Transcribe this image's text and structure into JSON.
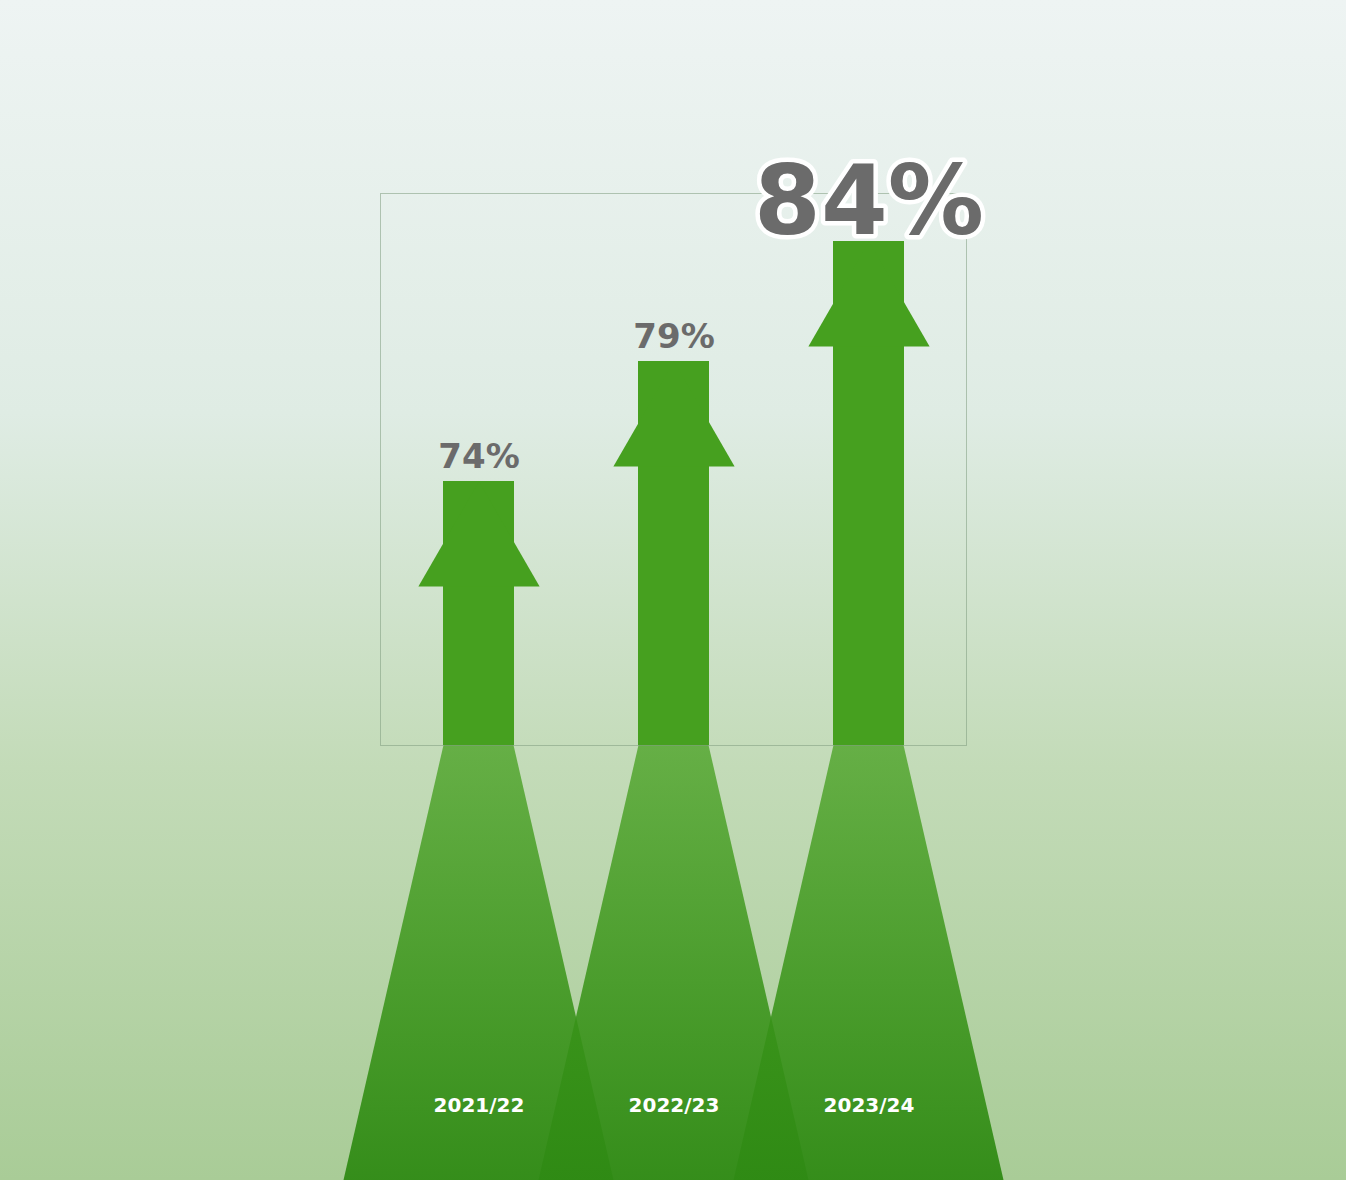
{
  "chart_data": {
    "type": "bar",
    "categories": [
      "2021/22",
      "2022/23",
      "2023/24"
    ],
    "values": [
      74,
      79,
      84
    ],
    "value_labels": [
      "74%",
      "79%",
      "84%"
    ],
    "color": "#46a01f",
    "ylim": [
      63,
      86
    ],
    "yticks": [],
    "data_labels": true,
    "tick_labels": "x",
    "grid": false
  }
}
